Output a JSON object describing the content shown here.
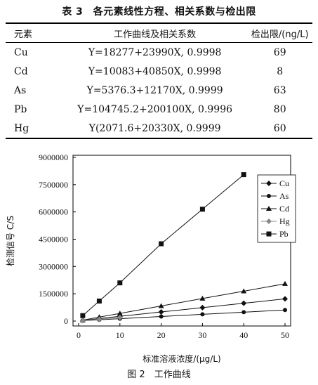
{
  "table": {
    "caption": "表 3　各元素线性方程、相关系数与检出限",
    "headers": [
      "元素",
      "工作曲线及相关系数",
      "检出限/(ng/L)"
    ],
    "rows": [
      {
        "element": "Cu",
        "equation": "Y=18277+23990X, 0.9998",
        "lod": "69"
      },
      {
        "element": "Cd",
        "equation": "Y=10083+40850X, 0.9998",
        "lod": "8"
      },
      {
        "element": "As",
        "equation": "Y=5376.3+12170X, 0.9999",
        "lod": "63"
      },
      {
        "element": "Pb",
        "equation": "Y=104745.2+200100X, 0.9996",
        "lod": "80"
      },
      {
        "element": "Hg",
        "equation": "Y(2071.6+20330X, 0.9999",
        "lod": "60"
      }
    ]
  },
  "figure_caption": "图 2　工作曲线",
  "chart_data": {
    "type": "line",
    "xlabel": "标准溶液浓度/(μg/L)",
    "ylabel": "检测信号 C/S",
    "xlim": [
      0,
      50
    ],
    "ylim": [
      0,
      9000000
    ],
    "x_ticks": [
      0,
      10,
      20,
      30,
      40,
      50
    ],
    "y_ticks": [
      0,
      1500000,
      3000000,
      4500000,
      6000000,
      7500000,
      9000000
    ],
    "legend_position": "top-right",
    "grid": false,
    "series": [
      {
        "name": "Cu",
        "marker": "diamond",
        "color": "#111111",
        "x": [
          1,
          5,
          10,
          20,
          30,
          40,
          50
        ],
        "y": [
          40000,
          140000,
          260000,
          500000,
          740000,
          980000,
          1220000
        ]
      },
      {
        "name": "As",
        "marker": "circle",
        "color": "#111111",
        "x": [
          1,
          5,
          10,
          20,
          30,
          40,
          50
        ],
        "y": [
          20000,
          70000,
          130000,
          250000,
          370000,
          490000,
          610000
        ]
      },
      {
        "name": "Cd",
        "marker": "triangle",
        "color": "#111111",
        "x": [
          1,
          5,
          10,
          20,
          30,
          40,
          50
        ],
        "y": [
          50000,
          220000,
          420000,
          830000,
          1240000,
          1640000,
          2050000
        ]
      },
      {
        "name": "Hg",
        "marker": "diamond-gray",
        "color": "#888888",
        "x": [
          1,
          5,
          10
        ],
        "y": [
          20000,
          100000,
          200000
        ]
      },
      {
        "name": "Pb",
        "marker": "square",
        "color": "#111111",
        "x": [
          1,
          5,
          10,
          20,
          30,
          40
        ],
        "y": [
          300000,
          1100000,
          2100000,
          4250000,
          6150000,
          8050000
        ]
      }
    ]
  }
}
